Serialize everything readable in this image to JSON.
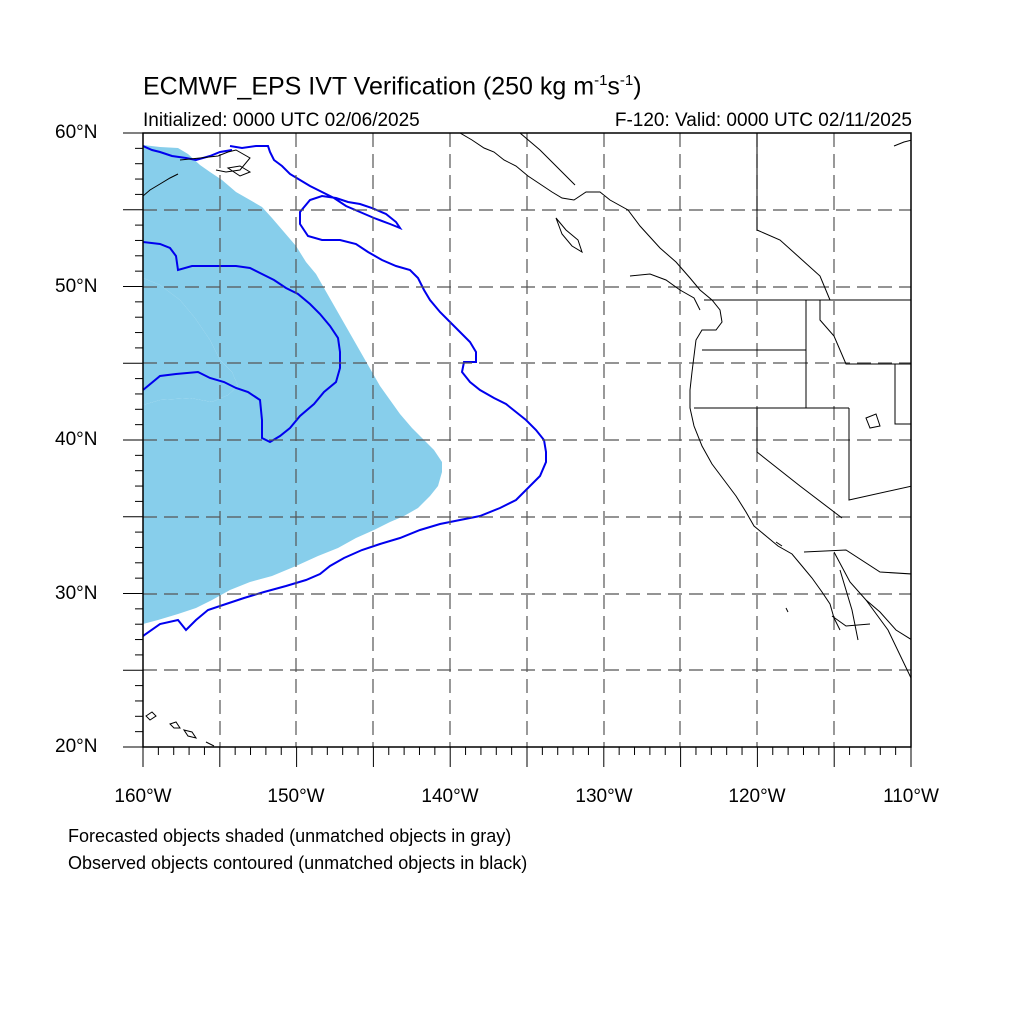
{
  "title": {
    "main": "ECMWF_EPS IVT Verification (250 kg m",
    "sup1": "-1",
    "mid": "s",
    "sup2": "-1",
    "end": ")"
  },
  "initialized": "Initialized: 0000 UTC 02/06/2025",
  "valid": "F-120: Valid: 0000 UTC 02/11/2025",
  "lat_labels": [
    "60°N",
    "50°N",
    "40°N",
    "30°N",
    "20°N"
  ],
  "lon_labels": [
    "160°W",
    "150°W",
    "140°W",
    "130°W",
    "120°W",
    "110°W"
  ],
  "notes": {
    "forecast": "Forecasted objects shaded (unmatched objects in gray)",
    "observed": "Observed objects contoured (unmatched objects in black)"
  },
  "colors": {
    "forecast_fill": "#87ceeb",
    "observed_contour": "#0000ee",
    "coast": "#000000",
    "grid": "#555555"
  },
  "map_extent": {
    "lon_min": -160,
    "lon_max": -110,
    "lat_min": 20,
    "lat_max": 60
  }
}
